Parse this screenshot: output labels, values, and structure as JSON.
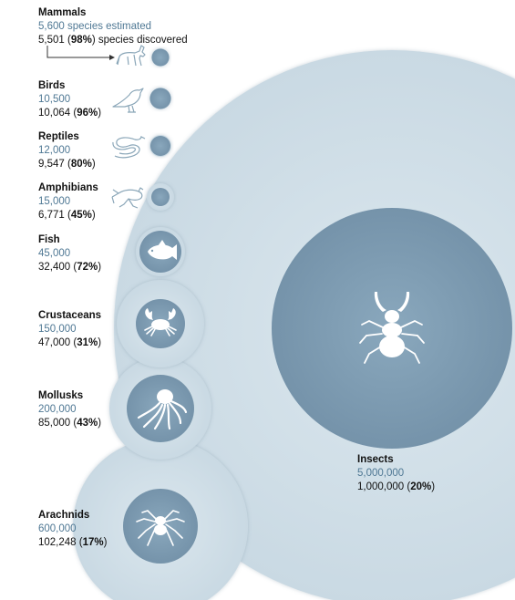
{
  "groups": [
    {
      "key": "mammals",
      "name": "Mammals",
      "estimated": "5,600",
      "estimated_suffix": " species estimated",
      "discovered": "5,501",
      "percent": "98%",
      "discovered_suffix": " species discovered",
      "icon": "deer-icon"
    },
    {
      "key": "birds",
      "name": "Birds",
      "estimated": "10,500",
      "discovered": "10,064",
      "percent": "96%",
      "icon": "bird-icon"
    },
    {
      "key": "reptiles",
      "name": "Reptiles",
      "estimated": "12,000",
      "discovered": "9,547",
      "percent": "80%",
      "icon": "snake-icon"
    },
    {
      "key": "amphibians",
      "name": "Amphibians",
      "estimated": "15,000",
      "discovered": "6,771",
      "percent": "45%",
      "icon": "frog-icon"
    },
    {
      "key": "fish",
      "name": "Fish",
      "estimated": "45,000",
      "discovered": "32,400",
      "percent": "72%",
      "icon": "fish-icon"
    },
    {
      "key": "crustaceans",
      "name": "Crustaceans",
      "estimated": "150,000",
      "discovered": "47,000",
      "percent": "31%",
      "icon": "crab-icon"
    },
    {
      "key": "mollusks",
      "name": "Mollusks",
      "estimated": "200,000",
      "discovered": "85,000",
      "percent": "43%",
      "icon": "octopus-icon"
    },
    {
      "key": "arachnids",
      "name": "Arachnids",
      "estimated": "600,000",
      "discovered": "102,248",
      "percent": "17%",
      "icon": "spider-icon"
    },
    {
      "key": "insects",
      "name": "Insects",
      "estimated": "5,000,000",
      "discovered": "1,000,000",
      "percent": "20%",
      "icon": "beetle-icon"
    }
  ],
  "colors": {
    "estimated_circle": "#d6e3eb",
    "discovered_circle": "#7e9db3",
    "estimated_text": "#4f7894",
    "icon_outline": "#8aa6b8"
  }
}
